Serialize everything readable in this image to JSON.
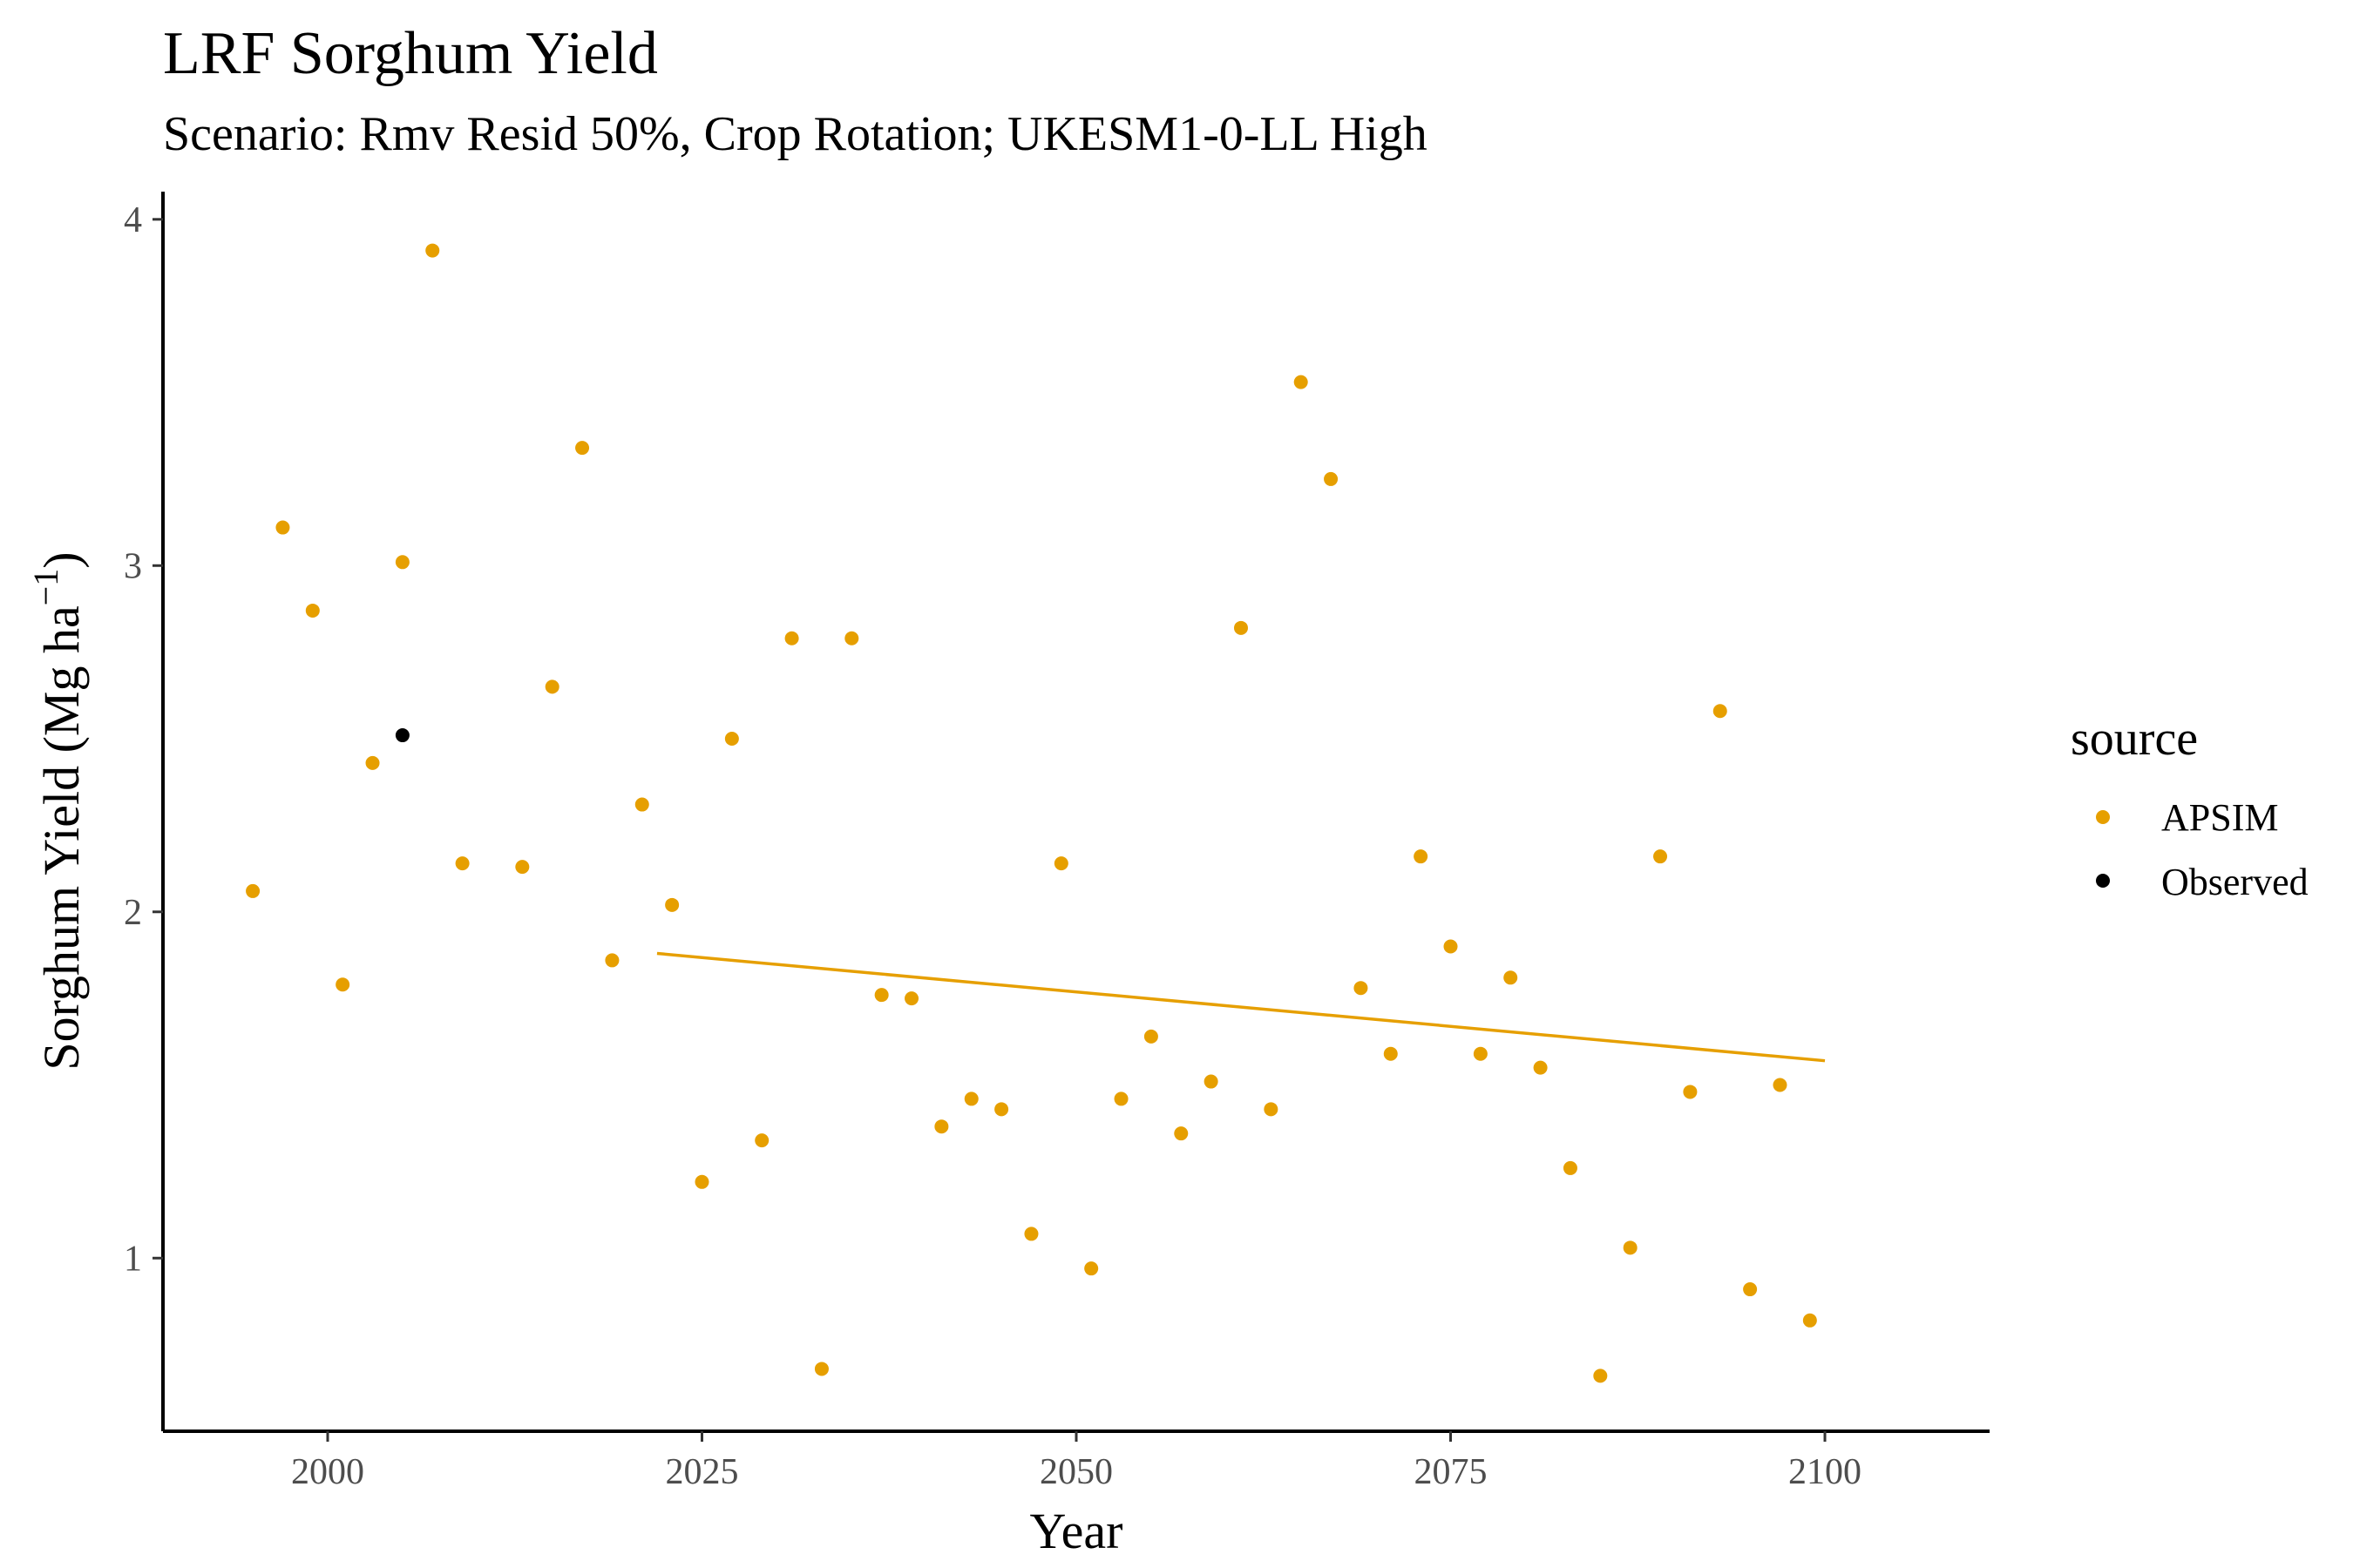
{
  "chart_data": {
    "type": "scatter",
    "title": "LRF Sorghum Yield",
    "subtitle": "Scenario: Rmv Resid 50%, Crop Rotation; UKESM1-0-LL High",
    "xlabel": "Year",
    "ylabel_main": "Sorghum Yield (Mg ha",
    "ylabel_sup": "−1",
    "ylabel_close": ")",
    "xlim": [
      1989,
      2111
    ],
    "ylim": [
      0.5,
      4.08
    ],
    "xticks": [
      2000,
      2025,
      2050,
      2075,
      2100
    ],
    "xtick_labels": [
      "2000",
      "2025",
      "2050",
      "2075",
      "2100"
    ],
    "yticks": [
      1,
      2,
      3,
      4
    ],
    "ytick_labels": [
      "1",
      "2",
      "3",
      "4"
    ],
    "grid": false,
    "legend": {
      "title": "source",
      "placement": "right",
      "entries": [
        {
          "label": "APSIM",
          "color": "#E69F00"
        },
        {
          "label": "Observed",
          "color": "#000000"
        }
      ]
    },
    "series": [
      {
        "name": "APSIM",
        "color": "#E69F00",
        "points": [
          [
            1995,
            2.06
          ],
          [
            1997,
            3.11
          ],
          [
            1999,
            2.87
          ],
          [
            2001,
            1.79
          ],
          [
            2003,
            2.43
          ],
          [
            2005,
            3.01
          ],
          [
            2007,
            3.91
          ],
          [
            2009,
            2.14
          ],
          [
            2013,
            2.13
          ],
          [
            2015,
            2.65
          ],
          [
            2017,
            3.34
          ],
          [
            2019,
            1.86
          ],
          [
            2021,
            2.31
          ],
          [
            2023,
            2.02
          ],
          [
            2025,
            1.22
          ],
          [
            2027,
            2.5
          ],
          [
            2029,
            1.34
          ],
          [
            2031,
            2.79
          ],
          [
            2033,
            0.68
          ],
          [
            2035,
            2.79
          ],
          [
            2037,
            1.76
          ],
          [
            2039,
            1.75
          ],
          [
            2041,
            1.38
          ],
          [
            2043,
            1.46
          ],
          [
            2045,
            1.43
          ],
          [
            2047,
            1.07
          ],
          [
            2049,
            2.14
          ],
          [
            2051,
            0.97
          ],
          [
            2053,
            1.46
          ],
          [
            2055,
            1.64
          ],
          [
            2057,
            1.36
          ],
          [
            2059,
            1.51
          ],
          [
            2061,
            2.82
          ],
          [
            2063,
            1.43
          ],
          [
            2065,
            3.53
          ],
          [
            2067,
            3.25
          ],
          [
            2069,
            1.78
          ],
          [
            2071,
            1.59
          ],
          [
            2073,
            2.16
          ],
          [
            2075,
            1.9
          ],
          [
            2077,
            1.59
          ],
          [
            2079,
            1.81
          ],
          [
            2081,
            1.55
          ],
          [
            2083,
            1.26
          ],
          [
            2085,
            0.66
          ],
          [
            2087,
            1.03
          ],
          [
            2089,
            2.16
          ],
          [
            2091,
            1.48
          ],
          [
            2093,
            2.58
          ],
          [
            2095,
            0.91
          ],
          [
            2097,
            1.5
          ],
          [
            2099,
            0.82
          ]
        ]
      },
      {
        "name": "Observed",
        "color": "#000000",
        "points": [
          [
            2005,
            2.51
          ]
        ]
      }
    ],
    "trend_line": {
      "series": "APSIM",
      "color": "#E69F00",
      "points": [
        [
          2022,
          1.88
        ],
        [
          2100,
          1.57
        ]
      ]
    }
  }
}
